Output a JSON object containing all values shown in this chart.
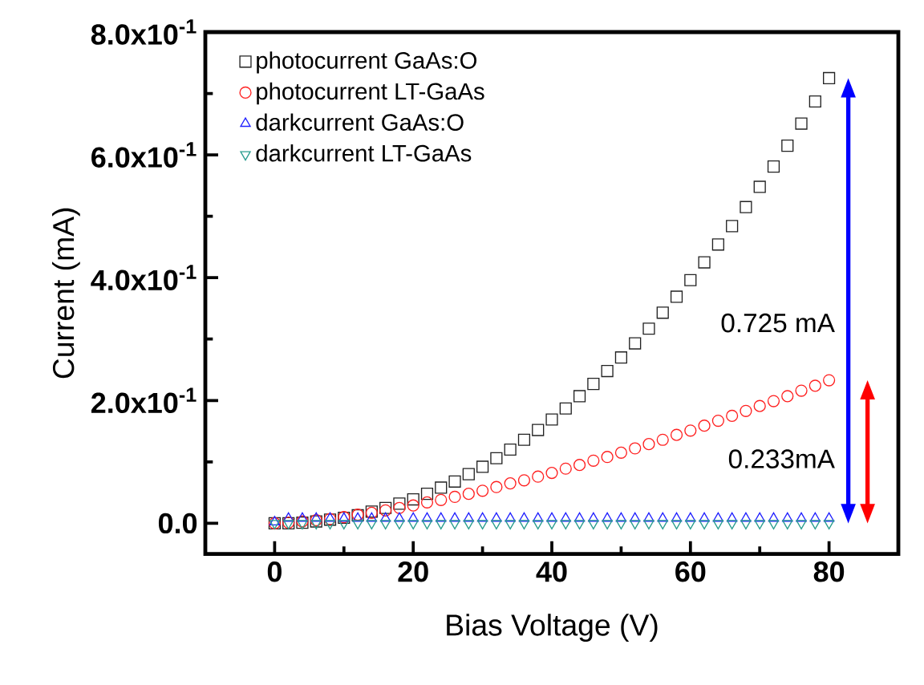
{
  "chart_data": {
    "type": "scatter",
    "xlabel": "Bias Voltage (V)",
    "ylabel": "Current (mA)",
    "x": [
      0,
      2,
      4,
      6,
      8,
      10,
      12,
      14,
      16,
      18,
      20,
      22,
      24,
      26,
      28,
      30,
      32,
      34,
      36,
      38,
      40,
      42,
      44,
      46,
      48,
      50,
      52,
      54,
      56,
      58,
      60,
      62,
      64,
      66,
      68,
      70,
      72,
      74,
      76,
      78,
      80
    ],
    "series": [
      {
        "name": "photocurrent GaAs:O",
        "color": "#222222",
        "marker": "square",
        "values": [
          0,
          0,
          0.001,
          0.003,
          0.006,
          0.009,
          0.013,
          0.019,
          0.025,
          0.032,
          0.039,
          0.048,
          0.058,
          0.068,
          0.08,
          0.092,
          0.106,
          0.12,
          0.136,
          0.152,
          0.169,
          0.187,
          0.207,
          0.227,
          0.248,
          0.27,
          0.293,
          0.317,
          0.343,
          0.369,
          0.396,
          0.425,
          0.454,
          0.484,
          0.515,
          0.548,
          0.581,
          0.615,
          0.651,
          0.687,
          0.725
        ]
      },
      {
        "name": "photocurrent LT-GaAs",
        "color": "#ff2020",
        "marker": "circle",
        "values": [
          0,
          0.001,
          0.003,
          0.005,
          0.007,
          0.01,
          0.014,
          0.017,
          0.021,
          0.025,
          0.029,
          0.034,
          0.038,
          0.043,
          0.048,
          0.053,
          0.059,
          0.065,
          0.07,
          0.076,
          0.082,
          0.089,
          0.095,
          0.102,
          0.108,
          0.115,
          0.122,
          0.129,
          0.136,
          0.144,
          0.151,
          0.159,
          0.167,
          0.175,
          0.183,
          0.191,
          0.199,
          0.207,
          0.216,
          0.224,
          0.233
        ]
      },
      {
        "name": "darkcurrent GaAs:O",
        "color": "#2020ff",
        "marker": "triangle",
        "values": [
          0.002,
          0.008,
          0.008,
          0.008,
          0.008,
          0.008,
          0.008,
          0.008,
          0.008,
          0.008,
          0.008,
          0.008,
          0.008,
          0.008,
          0.008,
          0.008,
          0.008,
          0.008,
          0.008,
          0.008,
          0.008,
          0.008,
          0.008,
          0.008,
          0.008,
          0.008,
          0.008,
          0.008,
          0.008,
          0.008,
          0.008,
          0.008,
          0.008,
          0.008,
          0.008,
          0.008,
          0.008,
          0.008,
          0.008,
          0.008,
          0.008
        ]
      },
      {
        "name": "darkcurrent LT-GaAs",
        "color": "#2a9d8f",
        "marker": "triangle down",
        "values": [
          0,
          0,
          0,
          0,
          0,
          0,
          0,
          0,
          0,
          0,
          0,
          0,
          0,
          0,
          0,
          0,
          0,
          0,
          0,
          0,
          0,
          0,
          0,
          0,
          0,
          0,
          0,
          0,
          0,
          0,
          0,
          0,
          0,
          0,
          0,
          0,
          0,
          0,
          0,
          0,
          0
        ]
      }
    ],
    "xlim": [
      -10,
      90
    ],
    "ylim": [
      -0.05,
      0.8
    ],
    "xticks": [
      0,
      20,
      40,
      60,
      80
    ],
    "yticks": [
      {
        "value": 0,
        "label": "0.0"
      },
      {
        "value": 0.2,
        "label": "2.0x10$^{-1}$"
      },
      {
        "value": 0.4,
        "label": "4.0x10$^{-1}$"
      },
      {
        "value": 0.6,
        "label": "6.0x10$^{-1}$"
      },
      {
        "value": 0.8,
        "label": "8.0x10$^{-1}$"
      }
    ],
    "annotations": [
      "0.725 mA",
      "0.233mA"
    ],
    "legend": "top left",
    "grid": false
  }
}
